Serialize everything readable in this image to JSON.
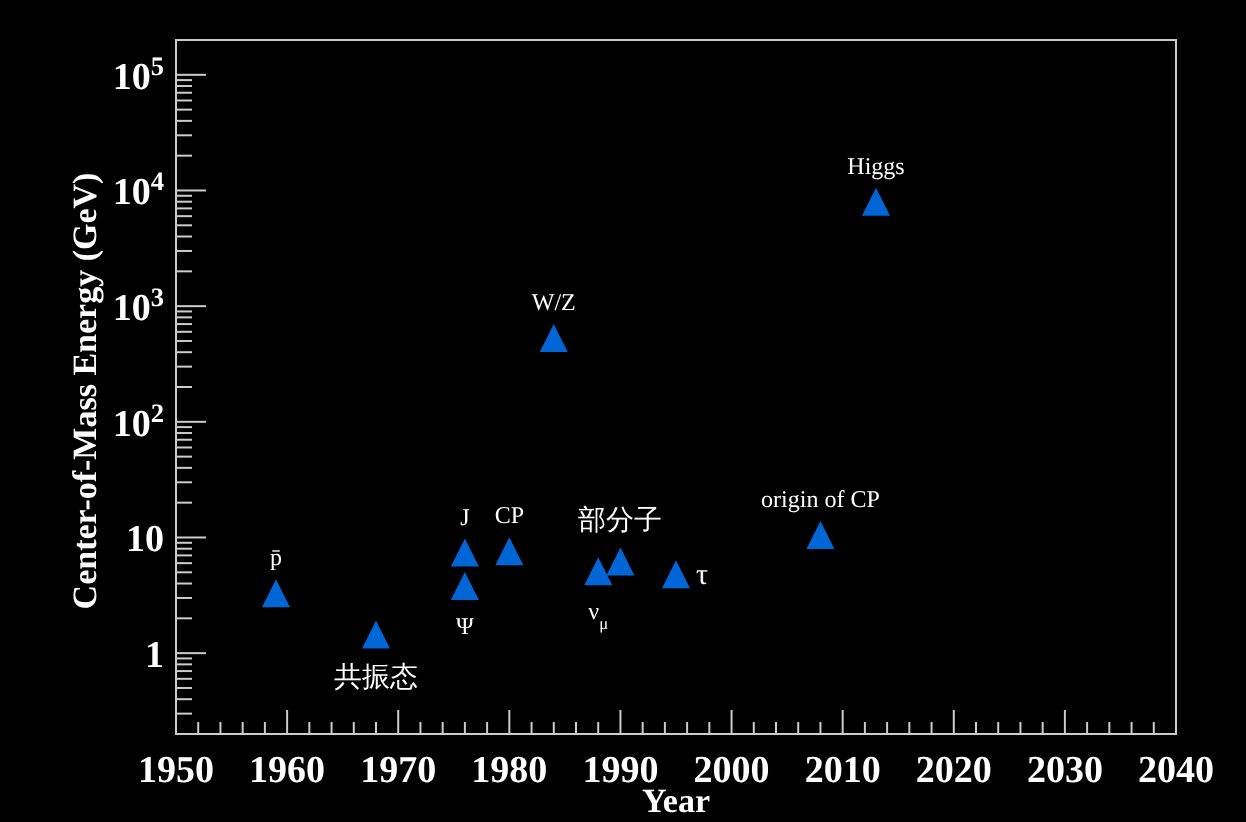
{
  "chart_data": {
    "type": "scatter",
    "xlabel": "Year",
    "ylabel": "Center-of-Mass Energy (GeV)",
    "log": "y",
    "marker": "triangle",
    "grid": false,
    "xlim": [
      1950,
      2040
    ],
    "ylim": [
      0.2,
      200000
    ],
    "xticks": [
      1950,
      1960,
      1970,
      1980,
      1990,
      2000,
      2010,
      2020,
      2030,
      2040
    ],
    "yticks": [
      1,
      10,
      {
        "value": 100,
        "label": "10$^{2}$"
      },
      {
        "value": 1000,
        "label": "10$^{3}$"
      },
      {
        "value": 10000,
        "label": "10$^{4}$"
      },
      {
        "value": 100000,
        "label": "10$^{5}$"
      }
    ],
    "series": [
      {
        "color": "#0066d6",
        "x": [
          1959,
          1968,
          1976,
          1976,
          1980,
          1984,
          1988,
          1990,
          1995,
          2008,
          2013
        ],
        "values": [
          3.3,
          1.45,
          7.4,
          3.8,
          7.6,
          530,
          5.1,
          6.2,
          4.8,
          10.5,
          8000
        ]
      }
    ],
    "annotations": [
      {
        "text": "p̄",
        "x": 1959,
        "y": 3.3
      },
      {
        "text": "共振态",
        "x": 1968,
        "y": 1.45
      },
      {
        "text": "J",
        "x": 1976,
        "y": 7.4
      },
      {
        "text": "Ψ",
        "x": 1976,
        "y": 3.8
      },
      {
        "text": "CP",
        "x": 1980,
        "y": 7.6
      },
      {
        "text": "W/Z",
        "x": 1984,
        "y": 530
      },
      {
        "text": "ν$_{μ}$",
        "x": 1988,
        "y": 5.1
      },
      {
        "text": "部分子",
        "x": 1990,
        "y": 6.2
      },
      {
        "text": "τ",
        "x": 1995,
        "y": 4.8
      },
      {
        "text": "origin of CP",
        "x": 2008,
        "y": 10.5
      },
      {
        "text": "Higgs",
        "x": 2013,
        "y": 8000
      }
    ]
  }
}
